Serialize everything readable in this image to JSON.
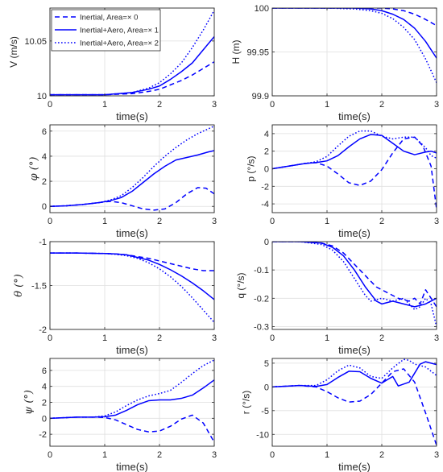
{
  "figure": {
    "line_color": "#0000ff",
    "legend": {
      "panel": 0,
      "location": "top-left",
      "entries": [
        {
          "label": "Inertial, Area=× 0",
          "style": "dashed"
        },
        {
          "label": "Inertial+Aero, Area=× 1",
          "style": "solid"
        },
        {
          "label": "Inertial+Aero, Area=× 2",
          "style": "dotted"
        }
      ]
    }
  },
  "chart_data": [
    {
      "type": "line",
      "ylabel": "V (m/s)",
      "ylabel_style": "text",
      "xlabel": "time(s)",
      "xlim": [
        0,
        3
      ],
      "ylim": [
        10,
        10.08
      ],
      "xticks": [
        "0",
        "1",
        "2",
        "3"
      ],
      "yticks": [
        10,
        10.05
      ],
      "ytick_labels": [
        "10",
        "10.05"
      ],
      "grid": true,
      "series": [
        {
          "name": "Inertial, Area=× 0",
          "style": "dashed",
          "x": [
            0,
            0.5,
            1,
            1.5,
            1.8,
            2,
            2.2,
            2.4,
            2.6,
            2.8,
            3
          ],
          "y": [
            10.001,
            10.001,
            10.001,
            10.002,
            10.004,
            10.006,
            10.01,
            10.014,
            10.019,
            10.025,
            10.031
          ]
        },
        {
          "name": "Inertial+Aero, Area=× 1",
          "style": "solid",
          "x": [
            0,
            0.5,
            1,
            1.5,
            1.8,
            2,
            2.2,
            2.4,
            2.6,
            2.8,
            3
          ],
          "y": [
            10.001,
            10.001,
            10.001,
            10.003,
            10.006,
            10.009,
            10.015,
            10.022,
            10.03,
            10.042,
            10.054
          ]
        },
        {
          "name": "Inertial+Aero, Area=× 2",
          "style": "dotted",
          "x": [
            0,
            0.5,
            1,
            1.5,
            1.8,
            2,
            2.2,
            2.4,
            2.6,
            2.8,
            3
          ],
          "y": [
            10.001,
            10.001,
            10.001,
            10.003,
            10.007,
            10.012,
            10.02,
            10.03,
            10.044,
            10.06,
            10.078
          ]
        }
      ]
    },
    {
      "type": "line",
      "ylabel": "H (m)",
      "ylabel_style": "text",
      "xlabel": "time(s)",
      "xlim": [
        0,
        3
      ],
      "ylim": [
        99.9,
        100
      ],
      "xticks": [
        "0",
        "1",
        "2",
        "3"
      ],
      "yticks": [
        99.9,
        99.95,
        100
      ],
      "ytick_labels": [
        "99.9",
        "99.95",
        "100"
      ],
      "grid": true,
      "series": [
        {
          "name": "Inertial, Area=× 0",
          "style": "dashed",
          "x": [
            0,
            1,
            1.5,
            2,
            2.2,
            2.4,
            2.6,
            2.8,
            3
          ],
          "y": [
            100,
            100,
            100,
            100,
            99.999,
            99.997,
            99.993,
            99.987,
            99.98
          ]
        },
        {
          "name": "Inertial+Aero, Area=× 1",
          "style": "solid",
          "x": [
            0,
            1,
            1.5,
            1.8,
            2,
            2.2,
            2.4,
            2.6,
            2.8,
            3
          ],
          "y": [
            100,
            100,
            100,
            99.999,
            99.997,
            99.993,
            99.987,
            99.977,
            99.962,
            99.943
          ]
        },
        {
          "name": "Inertial+Aero, Area=× 2",
          "style": "dotted",
          "x": [
            0,
            1,
            1.5,
            1.8,
            2,
            2.2,
            2.4,
            2.6,
            2.8,
            3
          ],
          "y": [
            100,
            100,
            99.999,
            99.997,
            99.994,
            99.988,
            99.978,
            99.964,
            99.942,
            99.915
          ]
        }
      ]
    },
    {
      "type": "line",
      "ylabel": "φ (°)",
      "ylabel_style": "greek",
      "xlabel": "time(s)",
      "xlim": [
        0,
        3
      ],
      "ylim": [
        -0.5,
        6.5
      ],
      "xticks": [
        "0",
        "1",
        "2",
        "3"
      ],
      "yticks": [
        0,
        2,
        4,
        6
      ],
      "ytick_labels": [
        "0",
        "2",
        "4",
        "6"
      ],
      "grid": true,
      "series": [
        {
          "name": "Inertial, Area=× 0",
          "style": "dashed",
          "x": [
            0,
            0.3,
            0.6,
            0.9,
            1.1,
            1.3,
            1.5,
            1.7,
            1.9,
            2.1,
            2.3,
            2.5,
            2.7,
            2.85,
            3
          ],
          "y": [
            0,
            0.05,
            0.15,
            0.3,
            0.4,
            0.3,
            0.05,
            -0.2,
            -0.3,
            -0.2,
            0.3,
            1.0,
            1.5,
            1.45,
            1.0
          ]
        },
        {
          "name": "Inertial+Aero, Area=× 1",
          "style": "solid",
          "x": [
            0,
            0.3,
            0.6,
            0.9,
            1.1,
            1.3,
            1.5,
            1.7,
            1.9,
            2.1,
            2.3,
            2.5,
            2.7,
            2.9,
            3
          ],
          "y": [
            0,
            0.05,
            0.15,
            0.3,
            0.45,
            0.7,
            1.2,
            1.9,
            2.6,
            3.2,
            3.7,
            3.9,
            4.1,
            4.35,
            4.45
          ]
        },
        {
          "name": "Inertial+Aero, Area=× 2",
          "style": "dotted",
          "x": [
            0,
            0.3,
            0.6,
            0.9,
            1.1,
            1.3,
            1.5,
            1.7,
            1.9,
            2.1,
            2.3,
            2.5,
            2.7,
            2.9,
            3
          ],
          "y": [
            0,
            0.05,
            0.15,
            0.3,
            0.5,
            0.85,
            1.5,
            2.3,
            3.2,
            4.0,
            4.7,
            5.3,
            5.8,
            6.2,
            6.4
          ]
        }
      ]
    },
    {
      "type": "line",
      "ylabel": "p (°/s)",
      "ylabel_style": "text",
      "xlabel": "time(s)",
      "xlim": [
        0,
        3
      ],
      "ylim": [
        -5,
        5
      ],
      "xticks": [
        "0",
        "1",
        "2",
        "3"
      ],
      "yticks": [
        -4,
        -2,
        0,
        2,
        4
      ],
      "ytick_labels": [
        "-4",
        "-2",
        "0",
        "2",
        "4"
      ],
      "grid": true,
      "series": [
        {
          "name": "Inertial, Area=× 0",
          "style": "dashed",
          "x": [
            0,
            0.3,
            0.6,
            0.8,
            1.0,
            1.2,
            1.4,
            1.6,
            1.8,
            2.0,
            2.2,
            2.4,
            2.6,
            2.75,
            2.9,
            3
          ],
          "y": [
            0,
            0.3,
            0.6,
            0.7,
            0.3,
            -0.6,
            -1.6,
            -1.9,
            -1.4,
            -0.1,
            1.8,
            3.4,
            3.6,
            2.6,
            0.3,
            -4.6
          ]
        },
        {
          "name": "Inertial+Aero, Area=× 1",
          "style": "solid",
          "x": [
            0,
            0.3,
            0.6,
            0.8,
            1.0,
            1.2,
            1.4,
            1.6,
            1.8,
            2.0,
            2.2,
            2.4,
            2.6,
            2.8,
            2.9,
            3
          ],
          "y": [
            0,
            0.3,
            0.6,
            0.7,
            0.9,
            1.5,
            2.5,
            3.4,
            3.9,
            3.8,
            2.9,
            2.0,
            1.6,
            1.9,
            2.0,
            1.8
          ]
        },
        {
          "name": "Inertial+Aero, Area=× 2",
          "style": "dotted",
          "x": [
            0,
            0.3,
            0.6,
            0.8,
            1.0,
            1.2,
            1.4,
            1.6,
            1.8,
            2.0,
            2.2,
            2.4,
            2.6,
            2.8,
            2.9,
            3
          ],
          "y": [
            0,
            0.3,
            0.6,
            0.8,
            1.4,
            2.6,
            3.7,
            4.3,
            4.3,
            3.7,
            3.4,
            3.6,
            3.6,
            2.4,
            1.5,
            1.2
          ]
        }
      ]
    },
    {
      "type": "line",
      "ylabel": "θ (°)",
      "ylabel_style": "greek",
      "xlabel": "time(s)",
      "xlim": [
        0,
        3
      ],
      "ylim": [
        -2,
        -1
      ],
      "xticks": [
        "0",
        "1",
        "2",
        "3"
      ],
      "yticks": [
        -2,
        -1.5,
        -1
      ],
      "ytick_labels": [
        "-2",
        "-1.5",
        "-1"
      ],
      "grid": true,
      "series": [
        {
          "name": "Inertial, Area=× 0",
          "style": "dashed",
          "x": [
            0,
            0.5,
            1.0,
            1.2,
            1.4,
            1.6,
            1.8,
            2.0,
            2.2,
            2.4,
            2.6,
            2.8,
            3.0
          ],
          "y": [
            -1.13,
            -1.13,
            -1.135,
            -1.14,
            -1.15,
            -1.17,
            -1.19,
            -1.22,
            -1.25,
            -1.28,
            -1.31,
            -1.33,
            -1.33
          ]
        },
        {
          "name": "Inertial+Aero, Area=× 1",
          "style": "solid",
          "x": [
            0,
            0.5,
            1.0,
            1.2,
            1.4,
            1.6,
            1.8,
            2.0,
            2.2,
            2.4,
            2.6,
            2.8,
            3.0
          ],
          "y": [
            -1.13,
            -1.13,
            -1.135,
            -1.14,
            -1.15,
            -1.18,
            -1.21,
            -1.26,
            -1.32,
            -1.39,
            -1.47,
            -1.56,
            -1.66
          ]
        },
        {
          "name": "Inertial+Aero, Area=× 2",
          "style": "dotted",
          "x": [
            0,
            0.5,
            1.0,
            1.2,
            1.4,
            1.6,
            1.8,
            2.0,
            2.2,
            2.4,
            2.6,
            2.8,
            3.0
          ],
          "y": [
            -1.13,
            -1.13,
            -1.135,
            -1.145,
            -1.16,
            -1.19,
            -1.24,
            -1.31,
            -1.4,
            -1.51,
            -1.64,
            -1.78,
            -1.92
          ]
        }
      ]
    },
    {
      "type": "line",
      "ylabel": "q (°/s)",
      "ylabel_style": "text",
      "xlabel": "time(s)",
      "xlim": [
        0,
        3
      ],
      "ylim": [
        -0.31,
        0
      ],
      "xticks": [
        "0",
        "1",
        "2",
        "3"
      ],
      "yticks": [
        -0.3,
        -0.2,
        -0.1,
        0
      ],
      "ytick_labels": [
        "-0.3",
        "-0.2",
        "-0.1",
        "0"
      ],
      "grid": true,
      "series": [
        {
          "name": "Inertial, Area=× 0",
          "style": "dashed",
          "x": [
            0,
            0.5,
            0.9,
            1.1,
            1.3,
            1.5,
            1.7,
            1.9,
            2.1,
            2.3,
            2.5,
            2.6,
            2.7,
            2.8,
            2.9,
            3.0
          ],
          "y": [
            0,
            0,
            -0.005,
            -0.015,
            -0.04,
            -0.08,
            -0.12,
            -0.16,
            -0.18,
            -0.2,
            -0.21,
            -0.2,
            -0.22,
            -0.17,
            -0.2,
            -0.23
          ]
        },
        {
          "name": "Inertial+Aero, Area=× 1",
          "style": "solid",
          "x": [
            0,
            0.5,
            0.9,
            1.1,
            1.3,
            1.5,
            1.7,
            1.9,
            2.0,
            2.2,
            2.4,
            2.6,
            2.8,
            3.0
          ],
          "y": [
            0,
            0,
            -0.005,
            -0.02,
            -0.05,
            -0.1,
            -0.16,
            -0.21,
            -0.22,
            -0.21,
            -0.22,
            -0.23,
            -0.22,
            -0.2
          ]
        },
        {
          "name": "Inertial+Aero, Area=× 2",
          "style": "dotted",
          "x": [
            0,
            0.5,
            0.9,
            1.1,
            1.3,
            1.5,
            1.7,
            1.8,
            2.0,
            2.2,
            2.4,
            2.6,
            2.7,
            2.8,
            2.9,
            3.0
          ],
          "y": [
            0,
            0,
            -0.01,
            -0.03,
            -0.07,
            -0.13,
            -0.19,
            -0.21,
            -0.2,
            -0.21,
            -0.2,
            -0.24,
            -0.23,
            -0.2,
            -0.22,
            -0.3
          ]
        }
      ]
    },
    {
      "type": "line",
      "ylabel": "ψ (°)",
      "ylabel_style": "greek",
      "xlabel": "time(s)",
      "xlim": [
        0,
        3
      ],
      "ylim": [
        -3.5,
        7.5
      ],
      "xticks": [
        "0",
        "1",
        "2",
        "3"
      ],
      "yticks": [
        -2,
        0,
        2,
        4,
        6
      ],
      "ytick_labels": [
        "-2",
        "0",
        "2",
        "4",
        "6"
      ],
      "grid": true,
      "series": [
        {
          "name": "Inertial, Area=× 0",
          "style": "dashed",
          "x": [
            0,
            0.5,
            0.8,
            1.0,
            1.2,
            1.4,
            1.6,
            1.8,
            2.0,
            2.2,
            2.4,
            2.6,
            2.8,
            3.0
          ],
          "y": [
            0,
            0.15,
            0.15,
            0.1,
            -0.2,
            -0.8,
            -1.4,
            -1.7,
            -1.6,
            -1.0,
            -0.1,
            0.4,
            -0.6,
            -3.0
          ]
        },
        {
          "name": "Inertial+Aero, Area=× 1",
          "style": "solid",
          "x": [
            0,
            0.5,
            0.8,
            1.0,
            1.2,
            1.4,
            1.6,
            1.8,
            2.0,
            2.2,
            2.4,
            2.6,
            2.8,
            3.0
          ],
          "y": [
            0,
            0.15,
            0.15,
            0.2,
            0.4,
            1.0,
            1.7,
            2.2,
            2.3,
            2.3,
            2.5,
            2.9,
            3.8,
            4.8
          ]
        },
        {
          "name": "Inertial+Aero, Area=× 2",
          "style": "dotted",
          "x": [
            0,
            0.5,
            0.8,
            1.0,
            1.2,
            1.4,
            1.6,
            1.8,
            2.0,
            2.2,
            2.4,
            2.6,
            2.8,
            3.0
          ],
          "y": [
            0,
            0.15,
            0.15,
            0.3,
            0.8,
            1.6,
            2.3,
            2.8,
            3.1,
            3.5,
            4.5,
            5.6,
            6.6,
            7.3
          ]
        }
      ]
    },
    {
      "type": "line",
      "ylabel": "r (°/s)",
      "ylabel_style": "text",
      "xlabel": "time(s)",
      "xlim": [
        0,
        3
      ],
      "ylim": [
        -12.5,
        6
      ],
      "xticks": [
        "0",
        "1",
        "2",
        "3"
      ],
      "yticks": [
        -10,
        -5,
        0,
        5
      ],
      "ytick_labels": [
        "-10",
        "-5",
        "0",
        "5"
      ],
      "grid": true,
      "series": [
        {
          "name": "Inertial, Area=× 0",
          "style": "dashed",
          "x": [
            0,
            0.5,
            0.8,
            1.0,
            1.2,
            1.4,
            1.6,
            1.8,
            2.0,
            2.2,
            2.4,
            2.6,
            2.8,
            3.0
          ],
          "y": [
            0,
            0.3,
            0,
            -1.0,
            -2.3,
            -3.2,
            -3.0,
            -1.6,
            0.8,
            3.2,
            3.8,
            1.0,
            -5.5,
            -12.3
          ]
        },
        {
          "name": "Inertial+Aero, Area=× 1",
          "style": "solid",
          "x": [
            0,
            0.5,
            0.8,
            1.0,
            1.2,
            1.4,
            1.6,
            1.8,
            2.0,
            2.2,
            2.3,
            2.5,
            2.7,
            2.8,
            3.0
          ],
          "y": [
            0,
            0.3,
            0.1,
            0.5,
            2.0,
            3.3,
            3.2,
            1.8,
            0.8,
            2.2,
            0.2,
            1.0,
            4.8,
            5.3,
            4.7
          ]
        },
        {
          "name": "Inertial+Aero, Area=× 2",
          "style": "dotted",
          "x": [
            0,
            0.5,
            0.8,
            1.0,
            1.2,
            1.4,
            1.6,
            1.8,
            2.0,
            2.2,
            2.4,
            2.5,
            2.6,
            2.8,
            3.0
          ],
          "y": [
            0,
            0.3,
            0.3,
            1.5,
            3.4,
            4.6,
            4.0,
            2.2,
            1.8,
            4.0,
            5.8,
            5.6,
            4.8,
            4.2,
            2.4
          ]
        }
      ]
    }
  ]
}
